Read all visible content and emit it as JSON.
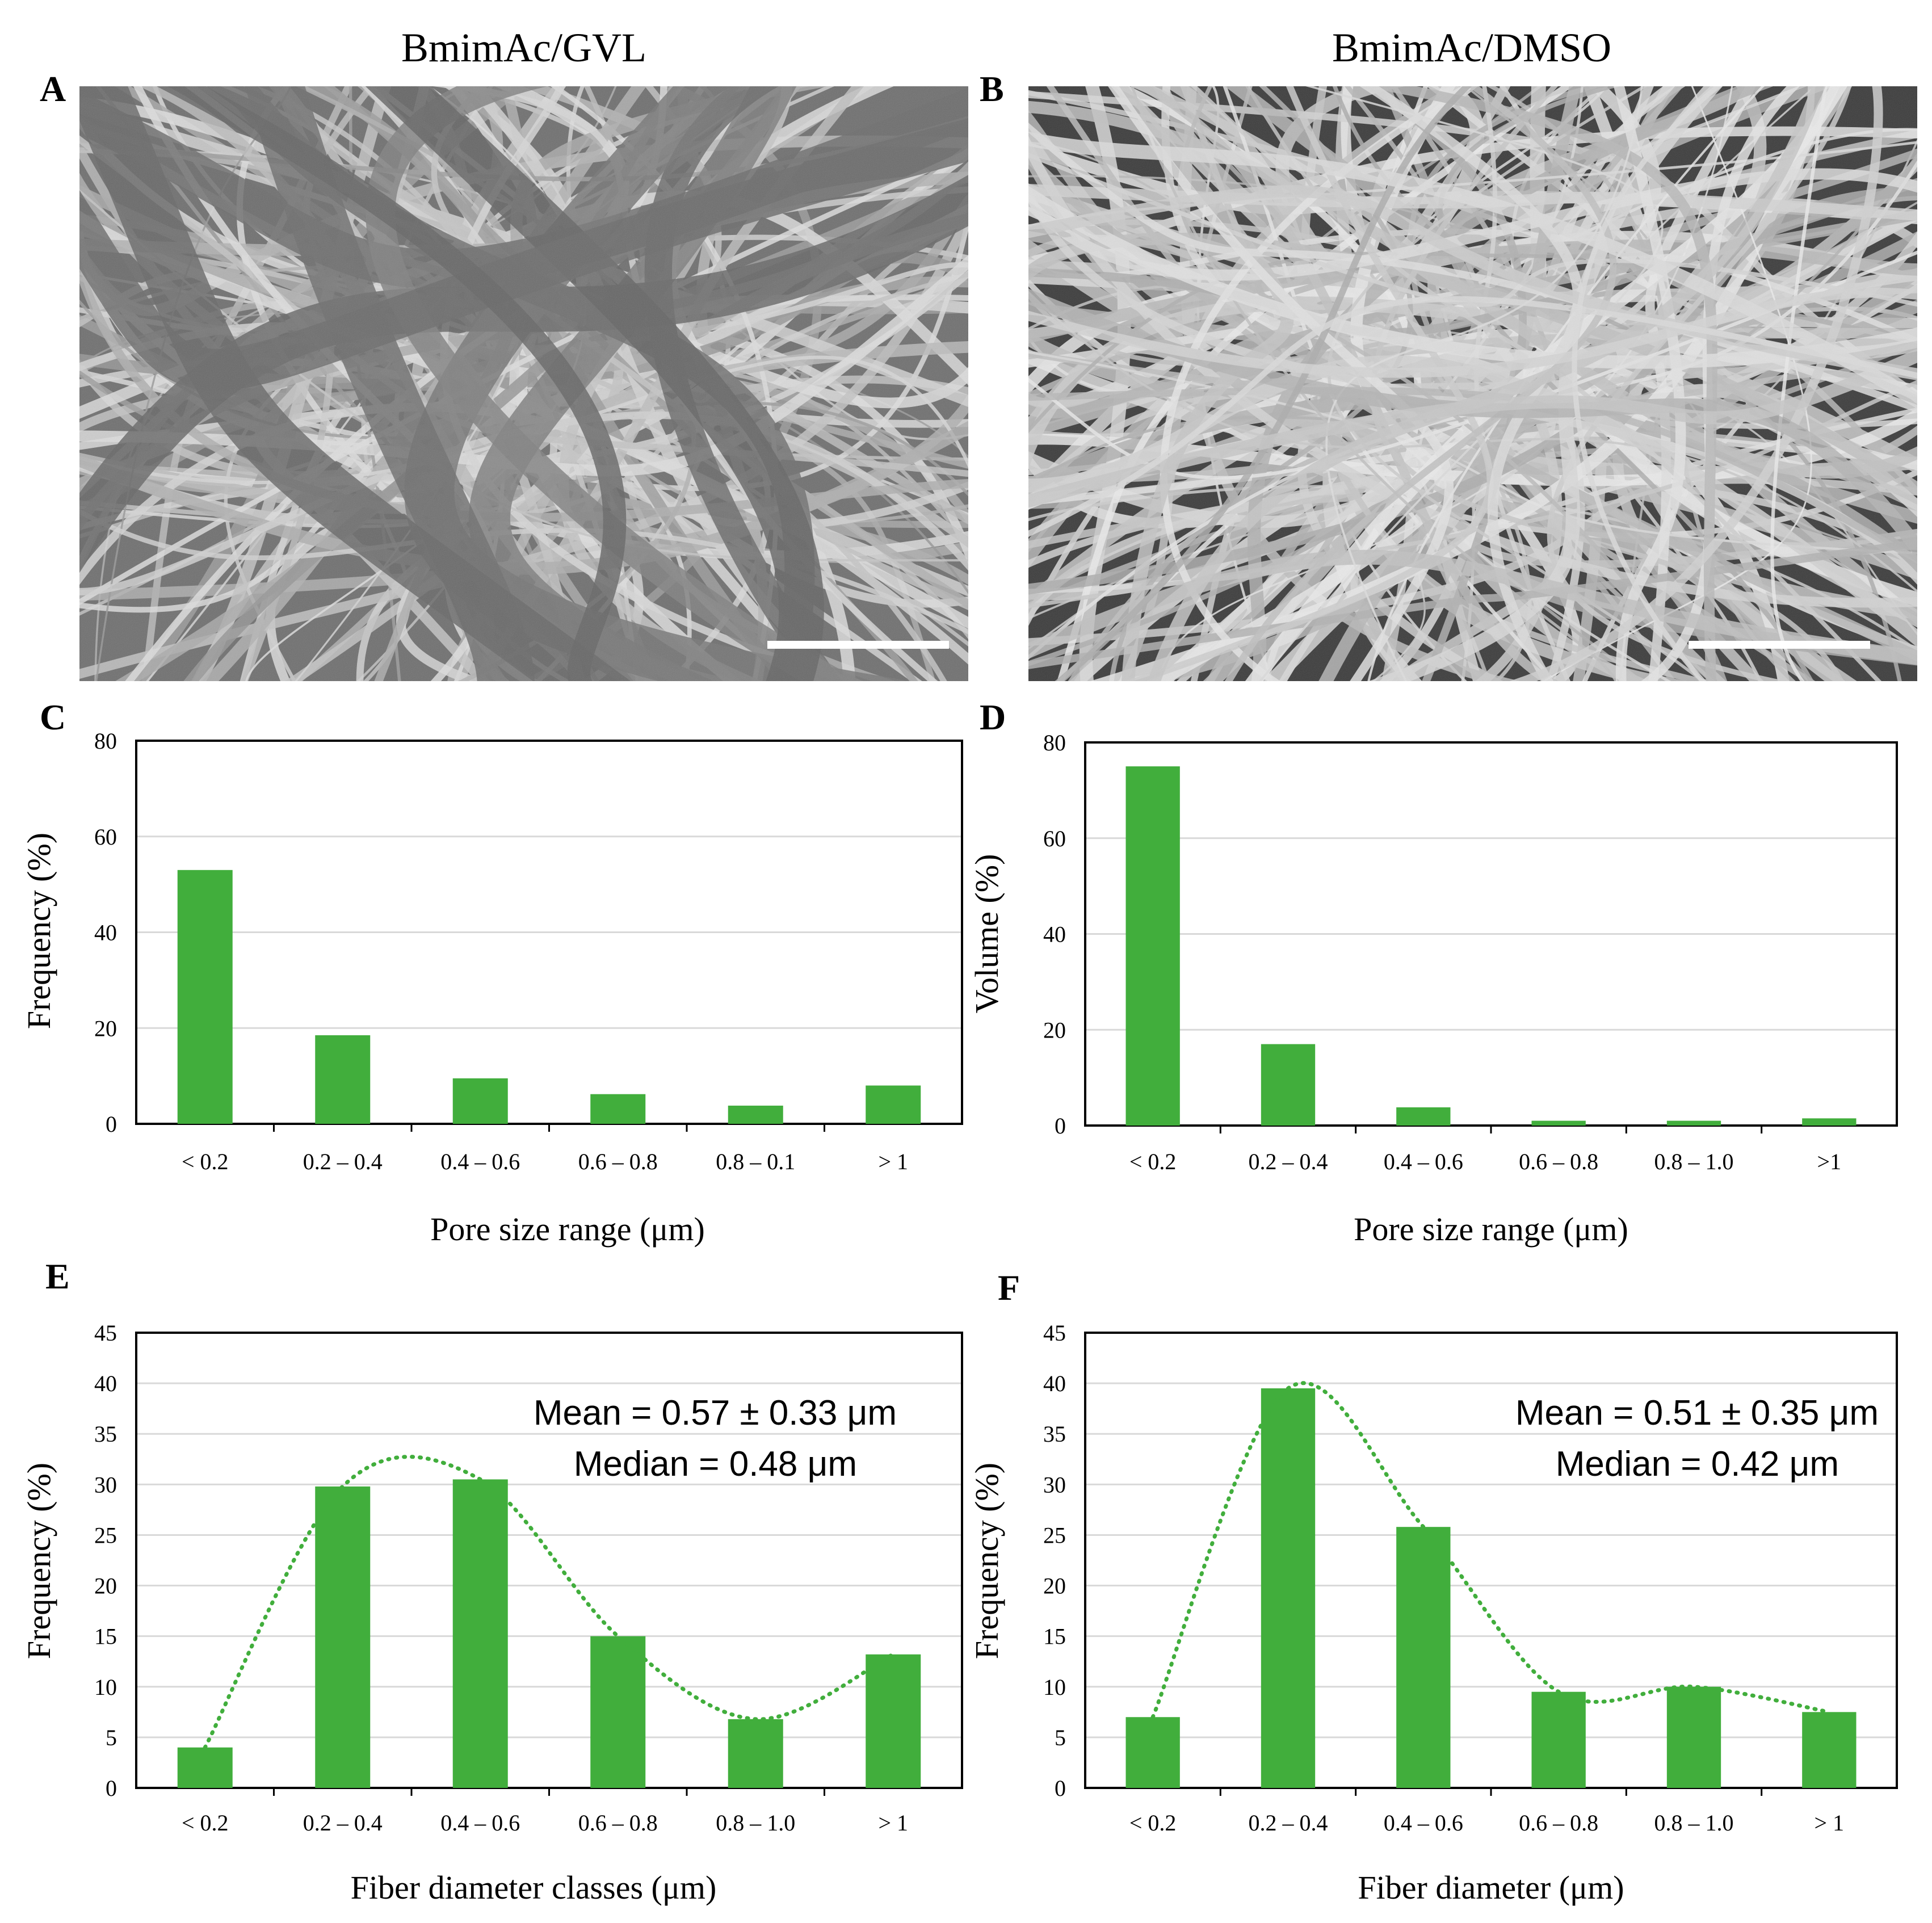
{
  "panels": {
    "A": {
      "letter": "A",
      "title": "BmimAc/GVL"
    },
    "B": {
      "letter": "B",
      "title": "BmimAc/DMSO"
    }
  },
  "colors": {
    "bar": "#41ae3c",
    "trend": "#41ae3c",
    "grid": "#d9d9d9",
    "axis": "#000000",
    "sem_background": "#7a7a7a"
  },
  "chart_data": [
    {
      "panel": "C",
      "type": "bar",
      "categories": [
        "< 0.2",
        "0.2 – 0.4",
        "0.4 – 0.6",
        "0.6 – 0.8",
        "0.8 – 0.1",
        "> 1"
      ],
      "values": [
        53,
        18.5,
        9.5,
        6.2,
        3.8,
        8
      ],
      "title": "",
      "xlabel": "Pore size range (μm)",
      "ylabel": "Frequency (%)",
      "ylim": [
        0,
        80
      ],
      "yticks": [
        0,
        20,
        40,
        60,
        80
      ],
      "grid": true,
      "annotations": []
    },
    {
      "panel": "D",
      "type": "bar",
      "categories": [
        "< 0.2",
        "0.2 – 0.4",
        "0.4 – 0.6",
        "0.6 – 0.8",
        "0.8 – 1.0",
        ">1"
      ],
      "values": [
        75,
        17,
        3.8,
        1,
        1,
        1.5
      ],
      "title": "",
      "xlabel": "Pore size range (μm)",
      "ylabel": "Volume (%)",
      "ylim": [
        0,
        80
      ],
      "yticks": [
        0,
        20,
        40,
        60,
        80
      ],
      "grid": true,
      "annotations": []
    },
    {
      "panel": "E",
      "type": "bar",
      "categories": [
        "< 0.2",
        "0.2 – 0.4",
        "0.4 – 0.6",
        "0.6 – 0.8",
        "0.8 – 1.0",
        "> 1"
      ],
      "values": [
        4,
        29.8,
        30.5,
        15,
        6.8,
        13.2
      ],
      "title": "",
      "xlabel": "Fiber diameter classes (μm)",
      "ylabel": "Frequency  (%)",
      "ylim": [
        0,
        45
      ],
      "yticks": [
        0,
        5,
        10,
        15,
        20,
        25,
        30,
        35,
        40,
        45
      ],
      "grid": true,
      "trendline": "dotted",
      "annotations": [
        "Mean = 0.57 ± 0.33 μm",
        "Median = 0.48 μm"
      ]
    },
    {
      "panel": "F",
      "type": "bar",
      "categories": [
        "< 0.2",
        "0.2 – 0.4",
        "0.4 – 0.6",
        "0.6 – 0.8",
        "0.8 – 1.0",
        "> 1"
      ],
      "values": [
        7,
        39.5,
        25.8,
        9.5,
        10,
        7.5
      ],
      "title": "",
      "xlabel": "Fiber diameter (μm)",
      "ylabel": "Frequency (%)",
      "ylim": [
        0,
        45
      ],
      "yticks": [
        0,
        5,
        10,
        15,
        20,
        25,
        30,
        35,
        40,
        45
      ],
      "grid": true,
      "trendline": "dotted",
      "annotations": [
        "Mean = 0.51 ± 0.35 μm",
        "Median = 0.42 μm"
      ]
    }
  ]
}
